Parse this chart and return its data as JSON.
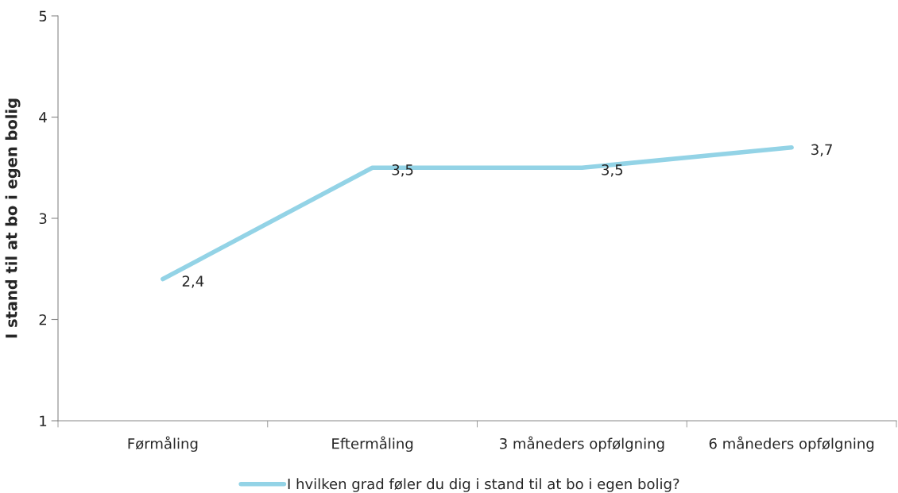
{
  "chart_data": {
    "type": "line",
    "ylabel": "I stand til at bo i egen bolig",
    "categories": [
      "Førmåling",
      "Eftermåling",
      "3 måneders opfølgning",
      "6 måneders opfølgning"
    ],
    "series": [
      {
        "name": "I hvilken grad føler du dig i stand til at bo i egen bolig?",
        "color": "#93d3e6",
        "values": [
          2.4,
          3.5,
          3.5,
          3.7
        ],
        "value_labels": [
          "2,4",
          "3,5",
          "3,5",
          "3,7"
        ]
      }
    ],
    "ylim": [
      1,
      5
    ],
    "yticks": [
      1,
      2,
      3,
      4,
      5
    ],
    "grid": false,
    "legend": "bottom",
    "marker": "none",
    "line_style": "solid"
  }
}
